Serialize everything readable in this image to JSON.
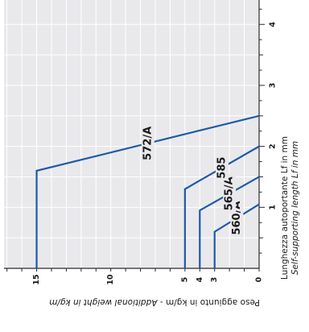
{
  "chart_data": {
    "type": "line",
    "bottom_axis": {
      "title_main": "Peso aggiunto in kg/m - ",
      "title_italic": "Additional weight in kg/m",
      "ticks": [
        0,
        3,
        4,
        5,
        10,
        15
      ],
      "range": [
        0,
        17.2
      ],
      "direction": "right-to-left"
    },
    "right_axis": {
      "title_main": "Lunghezza autoportante Lf in mm",
      "title_italic": "Self-supporting length Lf in mm",
      "ticks": [
        1,
        2,
        3,
        4
      ],
      "range": [
        0,
        4.4
      ]
    },
    "grid": true,
    "background_color": "#e9e9ec",
    "line_color": "#1f5aa6",
    "series": [
      {
        "name": "560/A",
        "points": [
          [
            3,
            0
          ],
          [
            3,
            0.6
          ],
          [
            0,
            1.05
          ]
        ]
      },
      {
        "name": "565/A",
        "points": [
          [
            4,
            0
          ],
          [
            4,
            0.95
          ],
          [
            0,
            1.5
          ]
        ]
      },
      {
        "name": "585",
        "points": [
          [
            5,
            0
          ],
          [
            5,
            1.3
          ],
          [
            0,
            2.0
          ]
        ]
      },
      {
        "name": "572/A",
        "points": [
          [
            15,
            0
          ],
          [
            15,
            1.6
          ],
          [
            0,
            2.5
          ]
        ]
      }
    ]
  }
}
